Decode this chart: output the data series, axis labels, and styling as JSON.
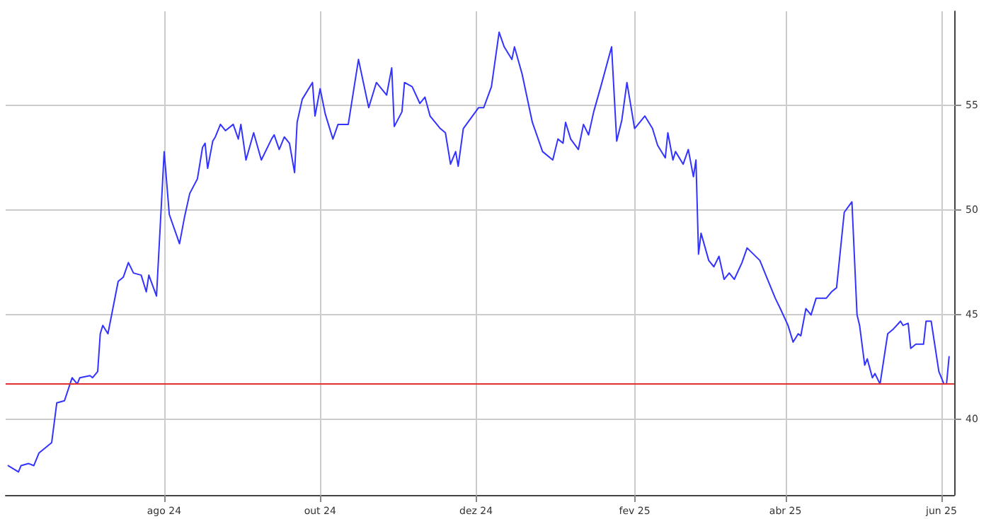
{
  "chart_data": {
    "type": "line",
    "x": [
      "2024-06-01",
      "2024-06-05",
      "2024-06-06",
      "2024-06-09",
      "2024-06-11",
      "2024-06-13",
      "2024-06-18",
      "2024-06-20",
      "2024-06-23",
      "2024-06-26",
      "2024-06-28",
      "2024-06-29",
      "2024-07-03",
      "2024-07-04",
      "2024-07-06",
      "2024-07-07",
      "2024-07-08",
      "2024-07-10",
      "2024-07-14",
      "2024-07-16",
      "2024-07-18",
      "2024-07-20",
      "2024-07-23",
      "2024-07-25",
      "2024-07-26",
      "2024-07-29",
      "2024-08-01",
      "2024-08-03",
      "2024-08-07",
      "2024-08-09",
      "2024-08-11",
      "2024-08-14",
      "2024-08-16",
      "2024-08-17",
      "2024-08-18",
      "2024-08-20",
      "2024-08-21",
      "2024-08-23",
      "2024-08-25",
      "2024-08-28",
      "2024-08-30",
      "2024-08-31",
      "2024-09-02",
      "2024-09-05",
      "2024-09-08",
      "2024-09-12",
      "2024-09-13",
      "2024-09-15",
      "2024-09-17",
      "2024-09-19",
      "2024-09-21",
      "2024-09-22",
      "2024-09-24",
      "2024-09-28",
      "2024-09-29",
      "2024-10-01",
      "2024-10-03",
      "2024-10-06",
      "2024-10-08",
      "2024-10-12",
      "2024-10-16",
      "2024-10-20",
      "2024-10-23",
      "2024-10-27",
      "2024-10-29",
      "2024-10-30",
      "2024-11-02",
      "2024-11-03",
      "2024-11-06",
      "2024-11-09",
      "2024-11-11",
      "2024-11-13",
      "2024-11-17",
      "2024-11-19",
      "2024-11-21",
      "2024-11-23",
      "2024-11-24",
      "2024-11-26",
      "2024-12-02",
      "2024-12-04",
      "2024-12-07",
      "2024-12-10",
      "2024-12-12",
      "2024-12-15",
      "2024-12-16",
      "2024-12-19",
      "2024-12-23",
      "2024-12-27",
      "2024-12-31",
      "2025-01-02",
      "2025-01-04",
      "2025-01-05",
      "2025-01-07",
      "2025-01-10",
      "2025-01-12",
      "2025-01-14",
      "2025-01-16",
      "2025-01-19",
      "2025-01-23",
      "2025-01-25",
      "2025-01-27",
      "2025-01-29",
      "2025-02-01",
      "2025-02-05",
      "2025-02-08",
      "2025-02-10",
      "2025-02-13",
      "2025-02-14",
      "2025-02-16",
      "2025-02-17",
      "2025-02-20",
      "2025-02-22",
      "2025-02-24",
      "2025-02-25",
      "2025-02-26",
      "2025-02-27",
      "2025-03-02",
      "2025-03-04",
      "2025-03-06",
      "2025-03-08",
      "2025-03-10",
      "2025-03-12",
      "2025-03-15",
      "2025-03-17",
      "2025-03-22",
      "2025-03-25",
      "2025-03-28",
      "2025-03-30",
      "2025-04-02",
      "2025-04-04",
      "2025-04-06",
      "2025-04-07",
      "2025-04-09",
      "2025-04-11",
      "2025-04-13",
      "2025-04-17",
      "2025-04-19",
      "2025-04-21",
      "2025-04-24",
      "2025-04-27",
      "2025-04-29",
      "2025-04-30",
      "2025-05-02",
      "2025-05-03",
      "2025-05-05",
      "2025-05-06",
      "2025-05-08",
      "2025-05-11",
      "2025-05-13",
      "2025-05-16",
      "2025-05-17",
      "2025-05-19",
      "2025-05-20",
      "2025-05-22",
      "2025-05-25",
      "2025-05-26",
      "2025-05-28",
      "2025-05-31",
      "2025-06-02",
      "2025-06-03",
      "2025-06-04"
    ],
    "series": [
      {
        "color": "#3333ff",
        "values": [
          37.8,
          37.5,
          37.8,
          37.9,
          37.8,
          38.4,
          38.9,
          40.8,
          40.9,
          42.0,
          41.7,
          42.0,
          42.1,
          42.0,
          42.3,
          44.1,
          44.5,
          44.1,
          46.6,
          46.8,
          47.5,
          47.0,
          46.9,
          46.1,
          46.9,
          45.9,
          52.8,
          49.8,
          48.4,
          49.7,
          50.8,
          51.5,
          53.0,
          53.2,
          52.0,
          53.3,
          53.5,
          54.1,
          53.8,
          54.1,
          53.4,
          54.1,
          52.4,
          53.7,
          52.4,
          53.4,
          53.6,
          52.9,
          53.5,
          53.2,
          51.8,
          54.2,
          55.3,
          56.1,
          54.5,
          55.8,
          54.6,
          53.4,
          54.1,
          54.1,
          57.2,
          54.9,
          56.1,
          55.5,
          56.8,
          54.0,
          54.7,
          56.1,
          55.9,
          55.1,
          55.4,
          54.5,
          53.9,
          53.7,
          52.2,
          52.8,
          52.1,
          53.9,
          54.9,
          54.9,
          55.9,
          58.5,
          57.8,
          57.2,
          57.8,
          56.5,
          54.2,
          52.8,
          52.4,
          53.4,
          53.2,
          54.2,
          53.4,
          52.9,
          54.1,
          53.6,
          54.7,
          56.0,
          57.8,
          53.3,
          54.3,
          56.1,
          53.9,
          54.5,
          53.9,
          53.1,
          52.5,
          53.7,
          52.4,
          52.8,
          52.2,
          52.9,
          51.6,
          52.4,
          47.9,
          48.9,
          47.6,
          47.3,
          47.8,
          46.7,
          47.0,
          46.7,
          47.5,
          48.2,
          47.6,
          46.7,
          45.8,
          45.3,
          44.5,
          43.7,
          44.1,
          44.0,
          45.3,
          45.0,
          45.8,
          45.8,
          46.1,
          46.3,
          49.9,
          50.4,
          45.0,
          44.5,
          42.6,
          42.9,
          42.0,
          42.2,
          41.7,
          44.1,
          44.3,
          44.7,
          44.5,
          44.6,
          43.4,
          43.6,
          43.6,
          44.7,
          44.7,
          42.3,
          41.7,
          41.7,
          43.0
        ]
      }
    ],
    "xlim": [
      "2024-05-31",
      "2025-06-06"
    ],
    "xticks": [
      {
        "value": "2024-08-01",
        "label": "ago 24"
      },
      {
        "value": "2024-10-01",
        "label": "out 24"
      },
      {
        "value": "2024-12-01",
        "label": "dez 24"
      },
      {
        "value": "2025-02-01",
        "label": "fev 25"
      },
      {
        "value": "2025-04-01",
        "label": "abr 25"
      },
      {
        "value": "2025-06-01",
        "label": "jun 25"
      }
    ],
    "ylim": [
      36.4,
      59.5
    ],
    "yticks": [
      40,
      45,
      50,
      55
    ],
    "ref_lines": [
      {
        "axis": "y",
        "value": 41.75,
        "color": "#e03030"
      }
    ],
    "grid": true,
    "marker": "none",
    "line_style": "solid"
  }
}
